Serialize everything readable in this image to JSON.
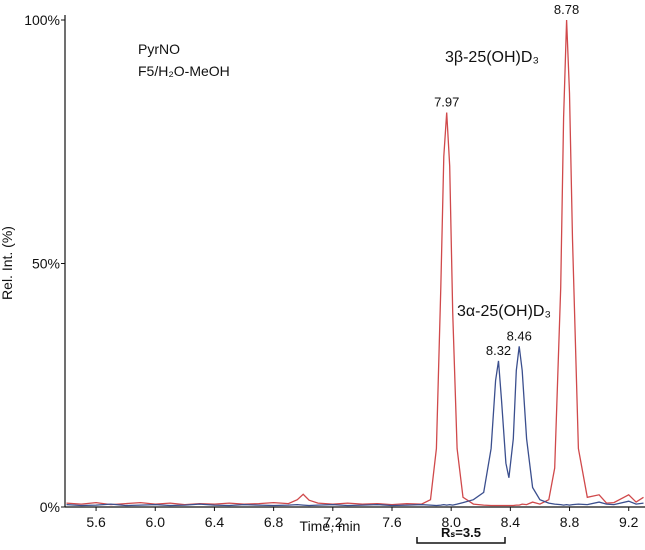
{
  "chart_data": {
    "type": "line",
    "x_label": "Time, min",
    "y_label": "Rel. Int. (%)",
    "annotations": [
      "PyrNO",
      "F5/H₂O-MeOH",
      "Rₛ=3.5"
    ],
    "x": [
      5.4,
      5.5,
      5.6,
      5.7,
      5.8,
      5.9,
      6.0,
      6.1,
      6.2,
      6.3,
      6.4,
      6.5,
      6.6,
      6.7,
      6.8,
      6.9,
      6.96,
      7.0,
      7.04,
      7.1,
      7.2,
      7.3,
      7.4,
      7.5,
      7.6,
      7.7,
      7.8,
      7.86,
      7.9,
      7.93,
      7.95,
      7.97,
      7.99,
      8.01,
      8.04,
      8.08,
      8.15,
      8.22,
      8.27,
      8.3,
      8.32,
      8.34,
      8.37,
      8.39,
      8.42,
      8.44,
      8.46,
      8.48,
      8.51,
      8.55,
      8.6,
      8.66,
      8.7,
      8.74,
      8.76,
      8.78,
      8.8,
      8.82,
      8.86,
      8.92,
      9.0,
      9.05,
      9.1,
      9.2,
      9.25,
      9.3
    ],
    "series": [
      {
        "name": "3β-25(OH)D₃",
        "color": "#d0494b",
        "peak_labels": [
          7.97,
          8.78
        ],
        "values": [
          0.8,
          0.6,
          0.9,
          0.5,
          0.7,
          0.9,
          0.6,
          0.8,
          0.5,
          0.7,
          0.6,
          0.8,
          0.6,
          0.7,
          0.9,
          0.7,
          1.5,
          2.6,
          1.4,
          0.8,
          0.6,
          0.8,
          0.6,
          0.7,
          0.5,
          0.7,
          0.6,
          1.5,
          12,
          45,
          72,
          81,
          70,
          40,
          12,
          2,
          0.6,
          0.4,
          0.3,
          0.3,
          0.3,
          0.3,
          0.3,
          0.3,
          0.3,
          0.4,
          0.4,
          0.6,
          0.5,
          1.0,
          0.6,
          1.5,
          8,
          45,
          80,
          100,
          85,
          55,
          12,
          2,
          2.5,
          0.8,
          0.9,
          2.5,
          1,
          2
        ]
      },
      {
        "name": "3α-25(OH)D₃",
        "color": "#3b4f8e",
        "peak_labels": [
          8.32,
          8.46
        ],
        "values": [
          0.5,
          0.3,
          0.4,
          0.6,
          0.3,
          0.4,
          0.5,
          0.3,
          0.4,
          0.6,
          0.4,
          0.3,
          0.5,
          0.4,
          0.3,
          0.4,
          0.5,
          0.4,
          0.3,
          0.4,
          0.5,
          0.3,
          0.4,
          0.5,
          0.3,
          0.4,
          0.5,
          0.4,
          0.3,
          0.4,
          0.5,
          0.4,
          0.5,
          0.4,
          0.6,
          0.9,
          1.5,
          3,
          12,
          26,
          30,
          22,
          9,
          6,
          14,
          28,
          33,
          28,
          14,
          4,
          1.5,
          0.8,
          0.6,
          0.5,
          0.4,
          0.5,
          0.4,
          0.5,
          0.6,
          0.5,
          1.0,
          0.6,
          0.5,
          1.2,
          0.6,
          0.8
        ]
      }
    ],
    "xlim": [
      5.39,
      9.31
    ],
    "xticks": [
      5.6,
      {
        "value": 6,
        "label": "6.0"
      },
      6.4,
      6.8,
      7.2,
      7.6,
      {
        "value": 8,
        "label": "8.0"
      },
      8.4,
      8.8,
      9.2
    ],
    "ylim": [
      0,
      100
    ],
    "yticks": [
      {
        "value": 0,
        "label": "0%"
      },
      {
        "value": 50,
        "label": "50%"
      },
      {
        "value": 100,
        "label": "100%"
      }
    ]
  }
}
